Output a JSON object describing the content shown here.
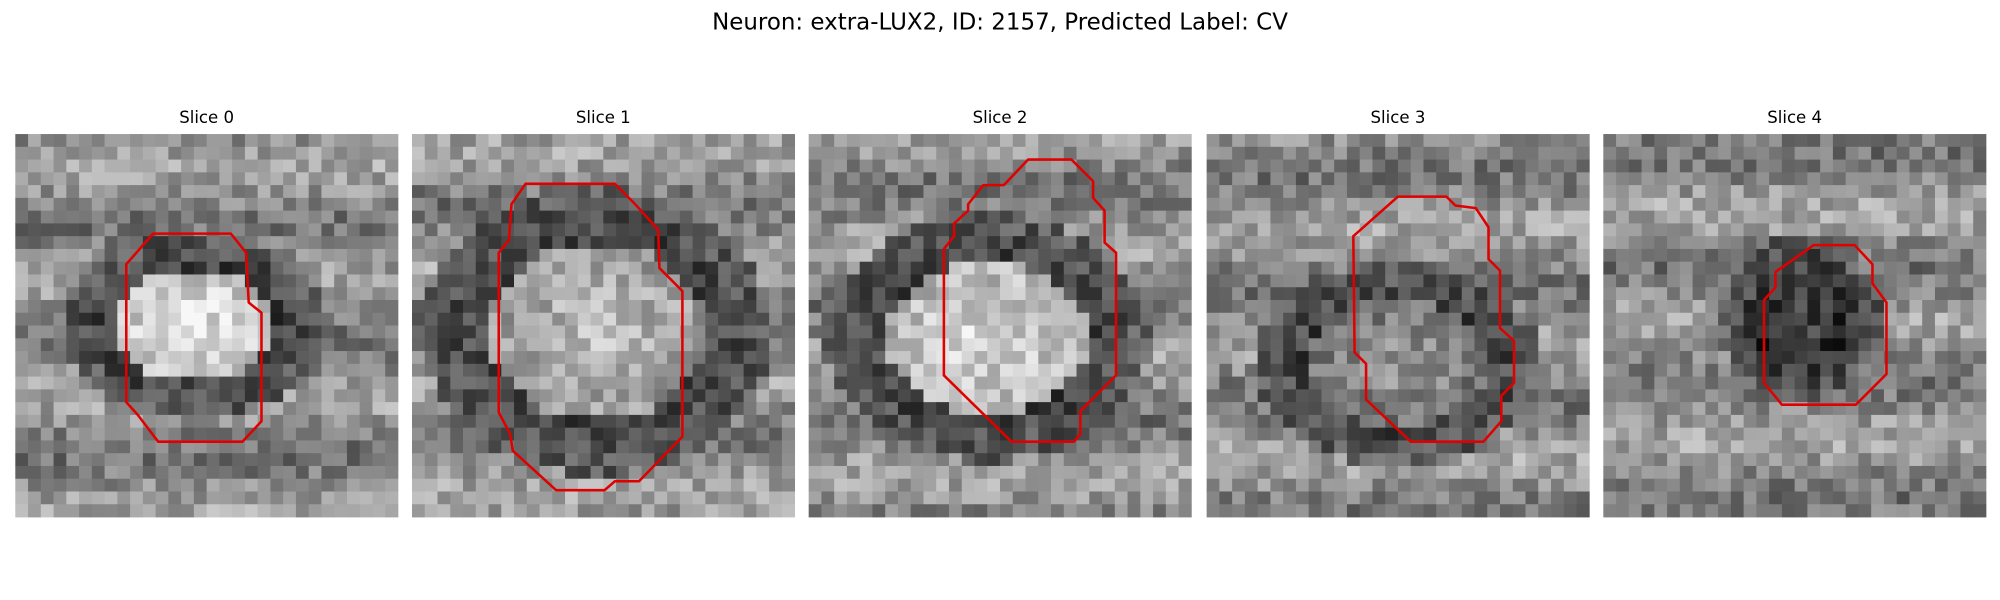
{
  "title": "Neuron: extra-LUX2, ID: 2157, Predicted Label: CV",
  "panels": [
    {
      "title": "Slice 0"
    },
    {
      "title": "Slice 1"
    },
    {
      "title": "Slice 2"
    },
    {
      "title": "Slice 3"
    },
    {
      "title": "Slice 4"
    }
  ]
}
